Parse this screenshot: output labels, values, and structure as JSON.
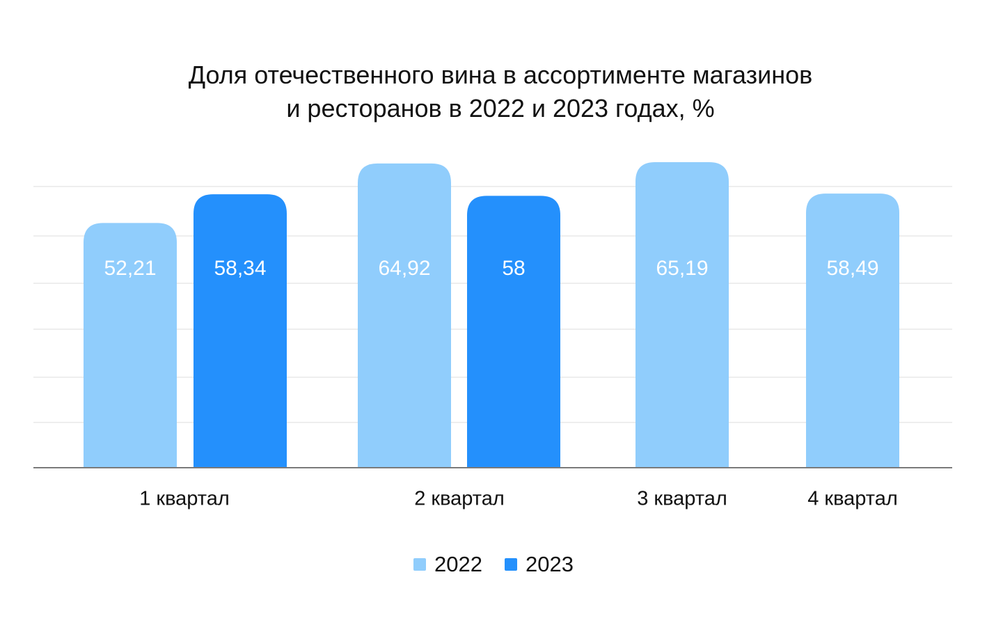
{
  "colors": {
    "series_2022": "#90cdfc",
    "series_2023": "#2490fc",
    "grid": "#eeeeee",
    "axis": "#7a7a7a"
  },
  "chart_data": {
    "type": "bar",
    "title": [
      "Доля отечественного вина в ассортименте магазинов",
      "и ресторанов в 2022 и 2023 годах, %"
    ],
    "categories": [
      "1 квартал",
      "2 квартал",
      "3 квартал",
      "4 квартал"
    ],
    "series": [
      {
        "name": "2022",
        "values": [
          52.21,
          64.92,
          65.19,
          58.49
        ],
        "labels": [
          "52,21",
          "64,92",
          "65,19",
          "58,49"
        ]
      },
      {
        "name": "2023",
        "values": [
          58.34,
          58,
          null,
          null
        ],
        "labels": [
          "58,34",
          "58",
          "",
          ""
        ]
      }
    ],
    "ylim": [
      0,
      65.19
    ],
    "grid": true,
    "legend_position": "bottom-center",
    "xlabel": "",
    "ylabel": ""
  }
}
